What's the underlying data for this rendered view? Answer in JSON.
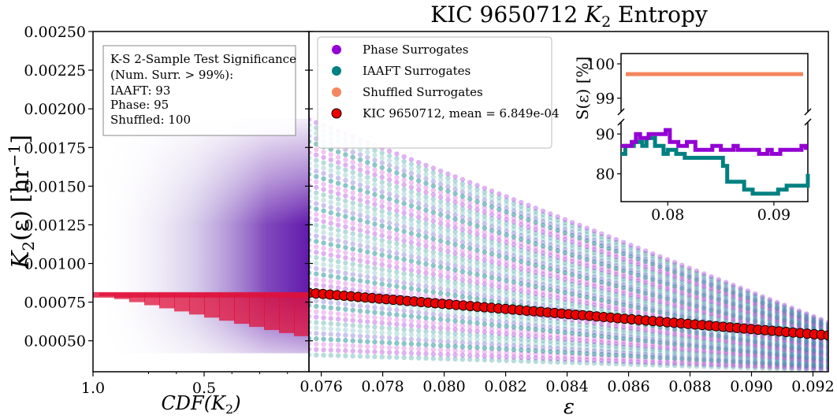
{
  "colors": {
    "phase": "#9400d3",
    "iaaft": "#008080",
    "shuffled": "#f4865e",
    "kic": "#ee0000",
    "cdf_purple": "#5a0ea8",
    "cdf_red": "#e0103a"
  },
  "chart_data": {
    "type": "scatter",
    "title": "KIC 9650712 K2 Entropy",
    "title_main": "KIC 9650712 ",
    "title_k": "K",
    "title_sub": "2",
    "title_tail": " Entropy",
    "ylabel": "K2(ε) [hr⁻¹]",
    "ylabel_k": "K",
    "ylabel_sub": "2",
    "ylabel_rest": "(ε) [hr",
    "ylabel_sup": "−1",
    "ylabel_close": "]",
    "xlabel": "ε",
    "ylim": [
      0.0003,
      0.0025
    ],
    "xlim": [
      0.0756,
      0.0925
    ],
    "yticks": [
      "0.00050",
      "0.00075",
      "0.00100",
      "0.00125",
      "0.00150",
      "0.00175",
      "0.00200",
      "0.00225",
      "0.00250"
    ],
    "ytick_values": [
      0.0005,
      0.00075,
      0.001,
      0.00125,
      0.0015,
      0.00175,
      0.002,
      0.00225,
      0.0025
    ],
    "xticks": [
      "0.076",
      "0.078",
      "0.080",
      "0.082",
      "0.084",
      "0.086",
      "0.088",
      "0.090",
      "0.092"
    ],
    "xtick_values": [
      0.076,
      0.078,
      0.08,
      0.082,
      0.084,
      0.086,
      0.088,
      0.09,
      0.092
    ],
    "cdf_panel": {
      "xlabel": "CDF(K2)",
      "xlabel_main": "CDF(K",
      "xlabel_sub": "2",
      "xlabel_close": ")",
      "xticks": [
        "1.0",
        "0.5"
      ],
      "xtick_values": [
        1.0,
        0.5
      ],
      "kic_mean_level": 0.00081
    },
    "series": [
      {
        "name": "Phase Surrogates",
        "color": "#9400d3"
      },
      {
        "name": "IAAFT Surrogates",
        "color": "#008080"
      },
      {
        "name": "Shuffled Surrogates",
        "color": "#f4865e"
      },
      {
        "name": "KIC 9650712, mean = 6.849e-04",
        "color": "#ee0000",
        "x_start": 0.0756,
        "x_end": 0.0925,
        "y_start": 0.00081,
        "y_end": 0.000535,
        "n_points": 75
      }
    ],
    "surrogate_bands": {
      "top_y_start": 0.00193,
      "top_y_end": 0.00062,
      "bottom_y_start": 0.00041,
      "bottom_y_end": 0.00031
    },
    "ks_box": {
      "line1": "K-S 2-Sample Test Significance",
      "line2": "(Num. Surr. > 99%):",
      "line3": "IAAFT: 93",
      "line4": "Phase: 95",
      "line5": "Shuffled: 100"
    },
    "inset": {
      "ylabel": "S(ε) [%]",
      "xticks": [
        "0.08",
        "0.09"
      ],
      "xtick_values": [
        0.08,
        0.09
      ],
      "xlim": [
        0.0756,
        0.0932
      ],
      "upper_yticks": [
        "99",
        "100"
      ],
      "upper_ytick_values": [
        99,
        100
      ],
      "upper_ylim": [
        98.6,
        100.3
      ],
      "lower_yticks": [
        "80",
        "90"
      ],
      "lower_ytick_values": [
        80,
        90
      ],
      "lower_ylim": [
        73,
        93
      ],
      "shuffled": {
        "x": [
          0.0756,
          0.0932
        ],
        "y": [
          99.7,
          99.7
        ]
      },
      "phase": {
        "x": [
          0.0756,
          0.0762,
          0.0766,
          0.077,
          0.0774,
          0.0778,
          0.0782,
          0.0786,
          0.079,
          0.0794,
          0.0798,
          0.0802,
          0.0806,
          0.081,
          0.0814,
          0.0818,
          0.0822,
          0.0826,
          0.083,
          0.0834,
          0.0838,
          0.0842,
          0.0846,
          0.085,
          0.0854,
          0.0858,
          0.0862,
          0.0866,
          0.087,
          0.0874,
          0.0878,
          0.0882,
          0.0886,
          0.089,
          0.0894,
          0.0898,
          0.0902,
          0.0906,
          0.091,
          0.0914,
          0.0918,
          0.0922,
          0.0926,
          0.093
        ],
        "y": [
          87,
          87,
          88,
          90,
          89,
          89,
          90,
          90,
          90,
          90,
          91,
          88,
          88,
          87,
          87,
          88,
          88,
          86,
          86,
          86,
          86,
          87,
          87,
          86,
          86,
          86,
          87,
          86,
          86,
          86,
          86,
          86,
          85,
          85,
          86,
          85,
          85,
          86,
          86,
          86,
          86,
          86,
          87,
          86
        ]
      },
      "iaaft": {
        "x": [
          0.0756,
          0.076,
          0.0764,
          0.0768,
          0.0772,
          0.0776,
          0.078,
          0.0784,
          0.0788,
          0.0792,
          0.0796,
          0.08,
          0.0804,
          0.0808,
          0.0812,
          0.0816,
          0.082,
          0.0824,
          0.0828,
          0.0832,
          0.0836,
          0.084,
          0.0844,
          0.0848,
          0.0852,
          0.0856,
          0.086,
          0.0864,
          0.0868,
          0.0872,
          0.0876,
          0.088,
          0.0884,
          0.0888,
          0.0892,
          0.0896,
          0.09,
          0.0904,
          0.0908,
          0.0912,
          0.0916,
          0.092,
          0.0924,
          0.0928,
          0.0932
        ],
        "y": [
          85,
          87,
          87,
          88,
          88,
          87,
          89,
          89,
          87,
          87,
          85,
          86,
          86,
          85,
          85,
          84,
          84,
          84,
          84,
          84,
          84,
          84,
          84,
          84,
          82,
          78,
          78,
          78,
          78,
          76,
          76,
          75,
          75,
          75,
          75,
          75,
          75,
          76,
          76,
          77,
          77,
          77,
          77,
          77,
          80
        ]
      }
    }
  }
}
